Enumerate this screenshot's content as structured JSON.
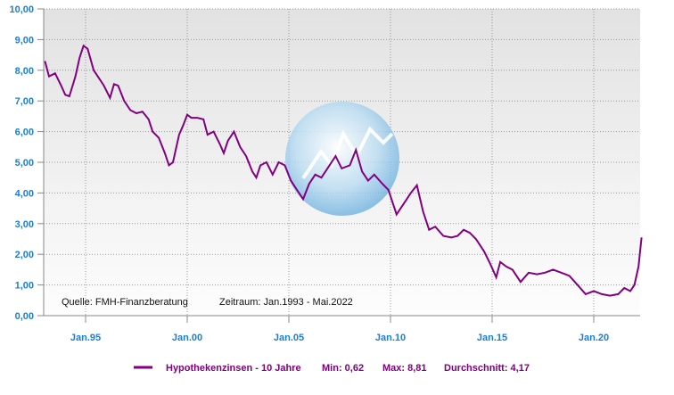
{
  "chart_data": {
    "type": "line",
    "title": "",
    "xlabel": "",
    "ylabel": "",
    "xlim": [
      1993.0,
      2022.35
    ],
    "ylim": [
      0,
      10
    ],
    "yticks": [
      "0,00",
      "1,00",
      "2,00",
      "3,00",
      "4,00",
      "5,00",
      "6,00",
      "7,00",
      "8,00",
      "9,00",
      "10,00"
    ],
    "xticks": [
      {
        "label": "Jan.95",
        "year": 1995
      },
      {
        "label": "Jan.00",
        "year": 2000
      },
      {
        "label": "Jan.05",
        "year": 2005
      },
      {
        "label": "Jan.10",
        "year": 2010
      },
      {
        "label": "Jan.15",
        "year": 2015
      },
      {
        "label": "Jan.20",
        "year": 2020
      }
    ],
    "grid": true,
    "source_note": "Quelle: FMH-Finanzberatung",
    "period_note": "Zeitraum: Jan.1993 - Mai.2022",
    "legend": {
      "placement": "bottom",
      "series_label": "Hypothekenzinsen - 10 Jahre",
      "min": "Min: 0,62",
      "max": "Max: 8,81",
      "avg": "Durchschnitt: 4,17"
    },
    "colors": {
      "line": "#800080",
      "axis_text": "#1a7fd4"
    },
    "series": [
      {
        "name": "Hypothekenzinsen - 10 Jahre",
        "x": [
          1993.0,
          1993.2,
          1993.5,
          1993.8,
          1994.0,
          1994.2,
          1994.5,
          1994.7,
          1994.9,
          1995.1,
          1995.4,
          1995.6,
          1995.9,
          1996.2,
          1996.4,
          1996.6,
          1996.9,
          1997.2,
          1997.5,
          1997.8,
          1998.1,
          1998.3,
          1998.6,
          1998.9,
          1999.1,
          1999.3,
          1999.6,
          1999.8,
          2000.0,
          2000.2,
          2000.5,
          2000.8,
          2001.0,
          2001.3,
          2001.6,
          2001.8,
          2002.0,
          2002.3,
          2002.6,
          2002.9,
          2003.2,
          2003.4,
          2003.6,
          2003.9,
          2004.2,
          2004.5,
          2004.8,
          2005.1,
          2005.4,
          2005.7,
          2006.0,
          2006.3,
          2006.6,
          2006.9,
          2007.3,
          2007.6,
          2008.0,
          2008.3,
          2008.6,
          2008.9,
          2009.2,
          2009.6,
          2009.9,
          2010.3,
          2010.6,
          2011.0,
          2011.3,
          2011.6,
          2011.9,
          2012.2,
          2012.6,
          2013.0,
          2013.3,
          2013.6,
          2013.9,
          2014.2,
          2014.6,
          2014.9,
          2015.2,
          2015.4,
          2015.7,
          2016.0,
          2016.4,
          2016.8,
          2017.2,
          2017.6,
          2018.0,
          2018.4,
          2018.8,
          2019.2,
          2019.6,
          2020.0,
          2020.4,
          2020.8,
          2021.2,
          2021.5,
          2021.8,
          2022.0,
          2022.2,
          2022.35
        ],
        "values": [
          8.3,
          7.8,
          7.9,
          7.5,
          7.2,
          7.15,
          7.8,
          8.4,
          8.8,
          8.7,
          8.0,
          7.8,
          7.5,
          7.1,
          7.55,
          7.5,
          7.0,
          6.7,
          6.6,
          6.65,
          6.4,
          6.0,
          5.8,
          5.3,
          4.9,
          5.0,
          5.9,
          6.2,
          6.55,
          6.45,
          6.45,
          6.4,
          5.9,
          6.0,
          5.6,
          5.3,
          5.7,
          6.0,
          5.5,
          5.2,
          4.7,
          4.5,
          4.9,
          5.0,
          4.6,
          5.0,
          4.9,
          4.4,
          4.1,
          3.8,
          4.3,
          4.6,
          4.5,
          4.8,
          5.2,
          4.8,
          4.9,
          5.4,
          4.7,
          4.4,
          4.6,
          4.3,
          4.1,
          3.3,
          3.6,
          4.0,
          4.25,
          3.4,
          2.8,
          2.9,
          2.6,
          2.55,
          2.6,
          2.8,
          2.7,
          2.5,
          2.1,
          1.7,
          1.25,
          1.75,
          1.6,
          1.5,
          1.1,
          1.4,
          1.35,
          1.4,
          1.5,
          1.4,
          1.3,
          1.0,
          0.7,
          0.8,
          0.7,
          0.65,
          0.7,
          0.9,
          0.8,
          1.0,
          1.6,
          2.55
        ]
      }
    ]
  }
}
